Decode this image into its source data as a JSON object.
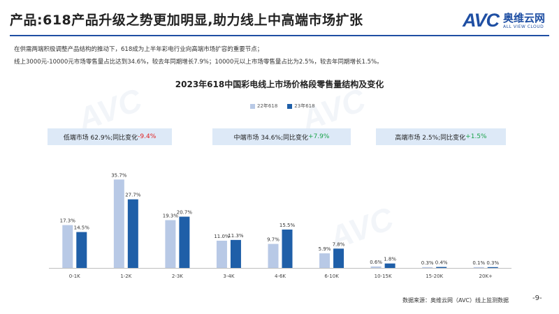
{
  "title": "产品:618产品升级之势更加明显,助力线上中高端市场扩张",
  "logo": {
    "mark": "AVC",
    "name_cn": "奥维云网",
    "name_en": "ALL VIEW CLOUD"
  },
  "intro": [
    "在供需两端积极调整产品结构的推动下，618成为上半年彩电行业向高端市场扩容的重要节点；",
    "线上3000元-10000元市场零售量占比达到34.6%，较去年同期增长7.9%；10000元以上市场零售量占比为2.5%，较去年同期增长1.5%。"
  ],
  "summary_boxes": [
    {
      "label": "低端市场 62.9%;同比变化 ",
      "change": "-9.4%",
      "direction": "down"
    },
    {
      "label": "中端市场 34.6%;同比变化 ",
      "change": "+7.9%",
      "direction": "up"
    },
    {
      "label": "高端市场 2.5%;同比变化 ",
      "change": "+1.5%",
      "direction": "up"
    }
  ],
  "footer": {
    "source": "数据来源：奥维云网（AVC）线上监测数据",
    "page": "-9-"
  },
  "colors": {
    "brand": "#1f4fa3",
    "series_2022": "#b8c9e6",
    "series_2023": "#1f5fa8",
    "negative": "#e02020",
    "positive": "#1aa34a",
    "box_bg": "#dde9f7"
  },
  "chart_data": {
    "type": "bar",
    "title": "2023年618中国彩电线上市场价格段零售量结构及变化",
    "categories": [
      "0-1K",
      "1-2K",
      "2-3K",
      "3-4K",
      "4-6K",
      "6-10K",
      "10-15K",
      "15-20K",
      "20K+"
    ],
    "series": [
      {
        "name": "22年618",
        "values": [
          17.3,
          35.7,
          19.3,
          11.0,
          9.7,
          5.9,
          0.6,
          0.3,
          0.1
        ],
        "labels": [
          "17.3%",
          "35.7%",
          "19.3%",
          "11.0%",
          "9.7%",
          "5.9%",
          "0.6%",
          "0.3%",
          "0.1%"
        ]
      },
      {
        "name": "23年618",
        "values": [
          14.5,
          27.7,
          20.7,
          11.3,
          15.5,
          7.8,
          1.8,
          0.4,
          0.3
        ],
        "labels": [
          "14.5%",
          "27.7%",
          "20.7%",
          "11.3%",
          "15.5%",
          "7.8%",
          "1.8%",
          "0.4%",
          "0.3%"
        ]
      }
    ],
    "xlabel": "",
    "ylabel": "",
    "ylim": [
      0,
      40
    ],
    "grid": false,
    "legend": "top-center"
  }
}
